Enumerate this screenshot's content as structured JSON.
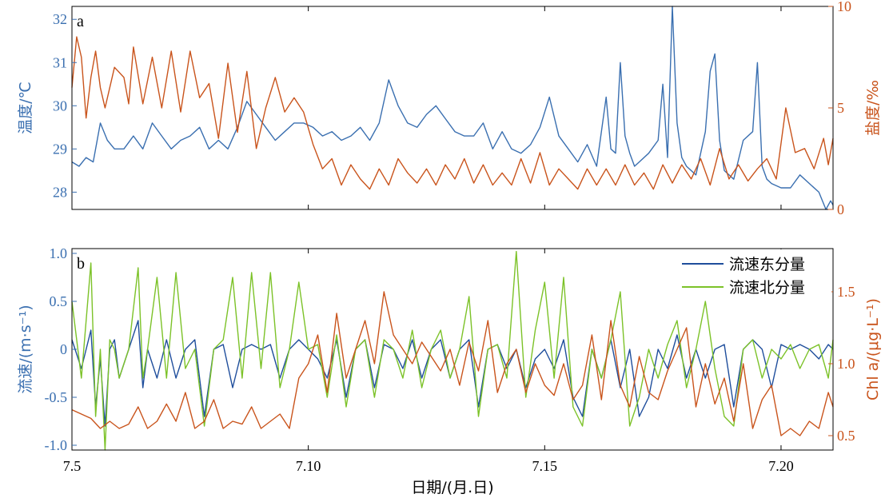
{
  "colors": {
    "temperature": "#3a6fb0",
    "salinity": "#c9541c",
    "east": "#1f4e9c",
    "north": "#7cc228",
    "chl": "#c9541c",
    "axis": "#000000"
  },
  "xaxis": {
    "label": "日期/(月.日)",
    "tick_labels": [
      "7.5",
      "7.10",
      "7.15",
      "7.20"
    ]
  },
  "chart_data": [
    {
      "type": "line",
      "panel_label": "a",
      "x_range": [
        5,
        21.1
      ],
      "x_ticks": [
        5,
        10,
        15,
        20
      ],
      "left_axis": {
        "label": "温度/℃",
        "range": [
          27.6,
          32.3
        ],
        "ticks": [
          28,
          29,
          30,
          31,
          32
        ],
        "tick_labels": [
          "28",
          "29",
          "30",
          "31",
          "32"
        ]
      },
      "right_axis": {
        "label": "盐度/‰",
        "range": [
          0,
          10
        ],
        "ticks": [
          0,
          5,
          10
        ],
        "tick_labels": [
          "0",
          "5",
          "10"
        ]
      },
      "series": [
        {
          "key": "temperature",
          "axis": "left",
          "x": [
            5.0,
            5.15,
            5.3,
            5.45,
            5.6,
            5.75,
            5.9,
            6.1,
            6.3,
            6.5,
            6.7,
            6.9,
            7.1,
            7.3,
            7.5,
            7.7,
            7.9,
            8.1,
            8.3,
            8.5,
            8.7,
            8.9,
            9.1,
            9.3,
            9.5,
            9.7,
            9.9,
            10.1,
            10.3,
            10.5,
            10.7,
            10.9,
            11.1,
            11.3,
            11.5,
            11.7,
            11.9,
            12.1,
            12.3,
            12.5,
            12.7,
            12.9,
            13.1,
            13.3,
            13.5,
            13.7,
            13.9,
            14.1,
            14.3,
            14.5,
            14.7,
            14.9,
            15.1,
            15.3,
            15.5,
            15.7,
            15.9,
            16.1,
            16.3,
            16.4,
            16.5,
            16.6,
            16.7,
            16.8,
            16.9,
            17.0,
            17.2,
            17.4,
            17.5,
            17.6,
            17.7,
            17.8,
            17.9,
            18.0,
            18.2,
            18.4,
            18.5,
            18.6,
            18.7,
            18.8,
            19.0,
            19.2,
            19.4,
            19.5,
            19.6,
            19.7,
            19.8,
            20.0,
            20.2,
            20.4,
            20.6,
            20.8,
            20.95,
            21.05,
            21.1
          ],
          "y": [
            28.7,
            28.6,
            28.8,
            28.7,
            29.6,
            29.2,
            29.0,
            29.0,
            29.3,
            29.0,
            29.6,
            29.3,
            29.0,
            29.2,
            29.3,
            29.5,
            29.0,
            29.2,
            29.0,
            29.5,
            30.1,
            29.8,
            29.5,
            29.2,
            29.4,
            29.6,
            29.6,
            29.5,
            29.3,
            29.4,
            29.2,
            29.3,
            29.5,
            29.2,
            29.6,
            30.6,
            30.0,
            29.6,
            29.5,
            29.8,
            30.0,
            29.7,
            29.4,
            29.3,
            29.3,
            29.6,
            29.0,
            29.4,
            29.0,
            28.9,
            29.1,
            29.5,
            30.2,
            29.3,
            29.0,
            28.7,
            29.1,
            28.6,
            30.2,
            29.0,
            28.9,
            31.0,
            29.3,
            28.9,
            28.6,
            28.7,
            28.9,
            29.2,
            30.5,
            28.8,
            32.3,
            29.6,
            28.8,
            28.6,
            28.4,
            29.4,
            30.8,
            31.2,
            29.2,
            28.5,
            28.3,
            29.2,
            29.4,
            31.0,
            28.6,
            28.3,
            28.2,
            28.1,
            28.1,
            28.4,
            28.2,
            28.0,
            27.6,
            27.8,
            27.7
          ]
        },
        {
          "key": "salinity",
          "axis": "right",
          "x": [
            5.0,
            5.1,
            5.2,
            5.3,
            5.4,
            5.5,
            5.6,
            5.7,
            5.9,
            6.1,
            6.2,
            6.3,
            6.5,
            6.7,
            6.9,
            7.1,
            7.3,
            7.5,
            7.7,
            7.9,
            8.1,
            8.3,
            8.5,
            8.7,
            8.9,
            9.1,
            9.3,
            9.5,
            9.7,
            9.9,
            10.1,
            10.3,
            10.5,
            10.7,
            10.9,
            11.1,
            11.3,
            11.5,
            11.7,
            11.9,
            12.1,
            12.3,
            12.5,
            12.7,
            12.9,
            13.1,
            13.3,
            13.5,
            13.7,
            13.9,
            14.1,
            14.3,
            14.5,
            14.7,
            14.9,
            15.1,
            15.3,
            15.5,
            15.7,
            15.9,
            16.1,
            16.3,
            16.5,
            16.7,
            16.9,
            17.1,
            17.3,
            17.5,
            17.7,
            17.9,
            18.1,
            18.3,
            18.5,
            18.7,
            18.9,
            19.1,
            19.3,
            19.5,
            19.7,
            19.9,
            20.1,
            20.3,
            20.5,
            20.7,
            20.9,
            21.0,
            21.1
          ],
          "y": [
            6.0,
            8.5,
            7.5,
            4.5,
            6.5,
            7.8,
            6.0,
            5.0,
            7.0,
            6.5,
            5.2,
            8.0,
            5.2,
            7.5,
            5.0,
            7.8,
            4.8,
            7.8,
            5.5,
            6.2,
            3.5,
            7.2,
            3.8,
            6.8,
            3.0,
            5.0,
            6.5,
            4.8,
            5.5,
            4.8,
            3.2,
            2.0,
            2.5,
            1.2,
            2.2,
            1.5,
            1.0,
            2.0,
            1.2,
            2.5,
            1.8,
            1.3,
            2.0,
            1.2,
            2.2,
            1.5,
            2.5,
            1.3,
            2.2,
            1.2,
            1.8,
            1.2,
            2.5,
            1.3,
            2.8,
            1.2,
            2.0,
            1.5,
            1.0,
            2.0,
            1.2,
            2.0,
            1.2,
            2.2,
            1.2,
            1.8,
            1.0,
            2.2,
            1.3,
            2.2,
            1.5,
            2.5,
            1.2,
            3.0,
            1.5,
            2.2,
            1.4,
            2.0,
            2.5,
            1.5,
            5.0,
            2.8,
            3.0,
            2.0,
            3.5,
            2.2,
            3.5
          ]
        }
      ]
    },
    {
      "type": "line",
      "panel_label": "b",
      "x_range": [
        5,
        21.1
      ],
      "x_ticks": [
        5,
        10,
        15,
        20
      ],
      "left_axis": {
        "label": "流速/(m·s⁻¹)",
        "range": [
          -1.05,
          1.05
        ],
        "ticks": [
          -1,
          -0.5,
          0,
          0.5,
          1
        ],
        "tick_labels": [
          "-1.0",
          "-0.5",
          "0",
          "0.5",
          "1.0"
        ]
      },
      "right_axis": {
        "label": "Chl a/(μg·L⁻¹)",
        "range": [
          0.4,
          1.8
        ],
        "ticks": [
          0.5,
          1.0,
          1.5
        ],
        "tick_labels": [
          "0.5",
          "1.0",
          "1.5"
        ]
      },
      "legend": [
        "流速东分量",
        "流速北分量"
      ],
      "series": [
        {
          "key": "east",
          "name": "流速东分量",
          "axis": "left",
          "x": [
            5.0,
            5.2,
            5.4,
            5.5,
            5.6,
            5.7,
            5.8,
            5.9,
            6.0,
            6.2,
            6.4,
            6.5,
            6.6,
            6.8,
            7.0,
            7.2,
            7.4,
            7.6,
            7.8,
            8.0,
            8.2,
            8.4,
            8.6,
            8.8,
            9.0,
            9.2,
            9.4,
            9.6,
            9.8,
            10.0,
            10.2,
            10.4,
            10.6,
            10.8,
            11.0,
            11.2,
            11.4,
            11.6,
            11.8,
            12.0,
            12.2,
            12.4,
            12.6,
            12.8,
            13.0,
            13.2,
            13.4,
            13.6,
            13.8,
            14.0,
            14.2,
            14.4,
            14.6,
            14.8,
            15.0,
            15.2,
            15.4,
            15.6,
            15.8,
            16.0,
            16.2,
            16.4,
            16.6,
            16.8,
            17.0,
            17.2,
            17.4,
            17.6,
            17.8,
            18.0,
            18.2,
            18.4,
            18.6,
            18.8,
            19.0,
            19.2,
            19.4,
            19.6,
            19.8,
            20.0,
            20.2,
            20.4,
            20.6,
            20.8,
            21.0,
            21.1
          ],
          "y": [
            0.1,
            -0.2,
            0.2,
            -0.6,
            -0.1,
            -0.8,
            0.0,
            0.1,
            -0.3,
            0.0,
            0.3,
            -0.4,
            0.0,
            -0.3,
            0.1,
            -0.3,
            0.0,
            0.1,
            -0.7,
            0.0,
            0.05,
            -0.4,
            0.0,
            0.05,
            0.0,
            0.05,
            -0.3,
            0.0,
            0.1,
            0.0,
            -0.1,
            -0.3,
            0.1,
            -0.5,
            0.0,
            0.1,
            -0.4,
            0.05,
            0.0,
            -0.2,
            0.1,
            -0.3,
            0.0,
            0.1,
            -0.3,
            0.0,
            0.1,
            -0.6,
            0.0,
            0.05,
            -0.2,
            0.0,
            -0.4,
            -0.1,
            0.0,
            -0.2,
            0.1,
            -0.5,
            -0.7,
            0.0,
            -0.3,
            0.1,
            -0.4,
            0.0,
            -0.7,
            -0.5,
            0.0,
            -0.2,
            0.15,
            -0.3,
            0.0,
            -0.3,
            0.0,
            0.05,
            -0.6,
            0.0,
            0.1,
            0.0,
            -0.4,
            0.05,
            0.0,
            0.05,
            0.0,
            -0.1,
            0.05,
            0.0
          ]
        },
        {
          "key": "north",
          "name": "流速北分量",
          "axis": "left",
          "x": [
            5.0,
            5.2,
            5.4,
            5.5,
            5.6,
            5.7,
            5.8,
            5.9,
            6.0,
            6.2,
            6.4,
            6.5,
            6.6,
            6.8,
            7.0,
            7.2,
            7.4,
            7.6,
            7.8,
            8.0,
            8.2,
            8.4,
            8.6,
            8.8,
            9.0,
            9.2,
            9.4,
            9.6,
            9.8,
            10.0,
            10.2,
            10.4,
            10.6,
            10.8,
            11.0,
            11.2,
            11.4,
            11.6,
            11.8,
            12.0,
            12.2,
            12.4,
            12.6,
            12.8,
            13.0,
            13.2,
            13.4,
            13.6,
            13.8,
            14.0,
            14.2,
            14.4,
            14.6,
            14.8,
            15.0,
            15.2,
            15.4,
            15.6,
            15.8,
            16.0,
            16.2,
            16.4,
            16.6,
            16.8,
            17.0,
            17.2,
            17.4,
            17.6,
            17.8,
            18.0,
            18.2,
            18.4,
            18.6,
            18.8,
            19.0,
            19.2,
            19.4,
            19.6,
            19.8,
            20.0,
            20.2,
            20.4,
            20.6,
            20.8,
            21.0,
            21.1
          ],
          "y": [
            0.5,
            -0.3,
            0.9,
            -0.7,
            0.0,
            -1.05,
            0.1,
            0.0,
            -0.3,
            0.0,
            0.85,
            -0.3,
            0.0,
            0.75,
            -0.3,
            0.8,
            -0.2,
            0.0,
            -0.8,
            0.0,
            0.1,
            0.75,
            -0.3,
            0.8,
            -0.2,
            0.8,
            -0.4,
            0.0,
            0.7,
            0.0,
            0.05,
            -0.5,
            0.15,
            -0.6,
            0.0,
            0.1,
            -0.5,
            0.1,
            0.0,
            -0.3,
            0.2,
            -0.4,
            0.0,
            0.2,
            -0.3,
            0.0,
            0.55,
            -0.7,
            0.0,
            0.05,
            -0.3,
            1.02,
            -0.5,
            0.2,
            0.7,
            -0.3,
            0.75,
            -0.6,
            -0.8,
            0.0,
            -0.3,
            0.1,
            0.6,
            -0.8,
            -0.5,
            0.0,
            -0.3,
            0.05,
            0.3,
            -0.4,
            0.0,
            0.5,
            -0.2,
            -0.7,
            -0.8,
            0.0,
            0.1,
            -0.3,
            0.0,
            -0.1,
            0.05,
            -0.2,
            0.0,
            0.05,
            -0.3,
            0.1
          ]
        },
        {
          "key": "chl",
          "axis": "right",
          "x": [
            5.0,
            5.2,
            5.4,
            5.6,
            5.8,
            6.0,
            6.2,
            6.4,
            6.6,
            6.8,
            7.0,
            7.2,
            7.4,
            7.6,
            7.8,
            8.0,
            8.2,
            8.4,
            8.6,
            8.8,
            9.0,
            9.2,
            9.4,
            9.6,
            9.8,
            10.0,
            10.2,
            10.4,
            10.6,
            10.8,
            11.0,
            11.2,
            11.4,
            11.6,
            11.8,
            12.0,
            12.2,
            12.4,
            12.6,
            12.8,
            13.0,
            13.2,
            13.4,
            13.6,
            13.8,
            14.0,
            14.2,
            14.4,
            14.6,
            14.8,
            15.0,
            15.2,
            15.4,
            15.6,
            15.8,
            16.0,
            16.2,
            16.4,
            16.6,
            16.8,
            17.0,
            17.2,
            17.4,
            17.6,
            17.8,
            18.0,
            18.2,
            18.4,
            18.6,
            18.8,
            19.0,
            19.2,
            19.4,
            19.6,
            19.8,
            20.0,
            20.2,
            20.4,
            20.6,
            20.8,
            21.0,
            21.1
          ],
          "y": [
            0.68,
            0.65,
            0.62,
            0.55,
            0.6,
            0.55,
            0.58,
            0.7,
            0.55,
            0.6,
            0.72,
            0.6,
            0.8,
            0.55,
            0.6,
            0.75,
            0.55,
            0.6,
            0.58,
            0.7,
            0.55,
            0.6,
            0.65,
            0.55,
            0.9,
            1.0,
            1.2,
            0.8,
            1.35,
            0.9,
            1.1,
            1.3,
            1.0,
            1.5,
            1.2,
            1.1,
            1.0,
            1.15,
            1.05,
            0.95,
            1.1,
            0.85,
            1.15,
            0.95,
            1.3,
            0.8,
            1.0,
            1.1,
            0.8,
            1.0,
            0.85,
            0.78,
            1.0,
            0.75,
            0.85,
            1.2,
            0.75,
            1.3,
            0.85,
            0.7,
            1.05,
            0.8,
            0.75,
            0.95,
            1.1,
            1.25,
            0.7,
            1.0,
            0.72,
            0.9,
            0.6,
            1.0,
            0.55,
            0.75,
            0.85,
            0.5,
            0.55,
            0.5,
            0.6,
            0.55,
            0.8,
            0.7
          ]
        }
      ]
    }
  ]
}
